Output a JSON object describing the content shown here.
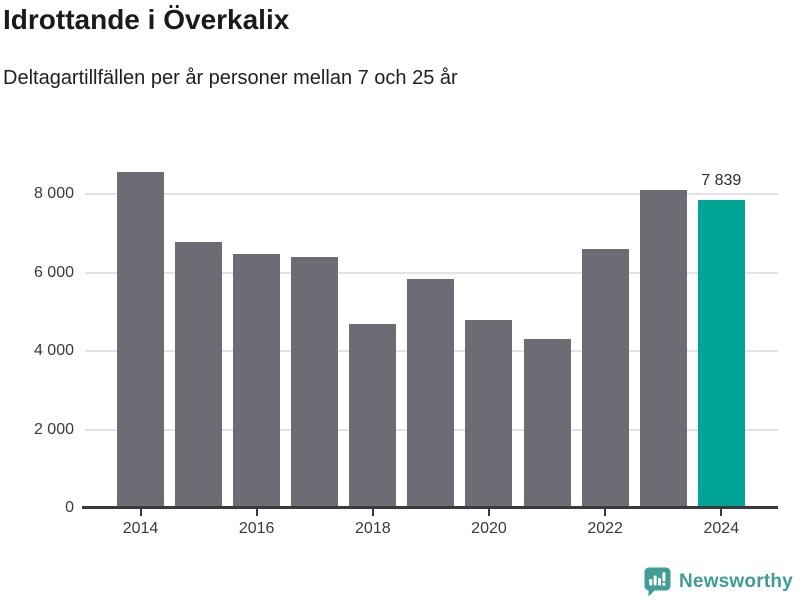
{
  "header": {
    "title": "Idrottande i Överkalix",
    "subtitle": "Deltagartillfällen per år personer mellan 7 och 25 år"
  },
  "chart_data": {
    "type": "bar",
    "title": "Idrottande i Överkalix",
    "subtitle": "Deltagartillfällen per år personer mellan 7 och 25 år",
    "categories": [
      "2014",
      "2015",
      "2016",
      "2017",
      "2018",
      "2019",
      "2020",
      "2021",
      "2022",
      "2023",
      "2024"
    ],
    "values": [
      8550,
      6780,
      6470,
      6390,
      4700,
      5830,
      4780,
      4300,
      6590,
      8090,
      7839
    ],
    "highlight_index": 10,
    "highlight_value_label": "7 839",
    "xlabel": "",
    "ylabel": "",
    "ylim": [
      0,
      9170
    ],
    "yticks": [
      0,
      2000,
      4000,
      6000,
      8000
    ],
    "ytick_labels": [
      "0",
      "2 000",
      "4 000",
      "6 000",
      "8 000"
    ],
    "xtick_indices": [
      0,
      2,
      4,
      6,
      8,
      10
    ],
    "xtick_labels": [
      "2014",
      "2016",
      "2018",
      "2020",
      "2022",
      "2024"
    ],
    "grid": true,
    "legend": false,
    "bar_color": "#6d6c74",
    "highlight_color": "#00a496",
    "gridline_color": "#e3e3e3",
    "axis_color": "#3a3a3a"
  },
  "footer": {
    "brand": "Newsworthy",
    "brand_color": "#3f9c96",
    "logo_icon": "bar-chart-speech-bubble-icon"
  }
}
